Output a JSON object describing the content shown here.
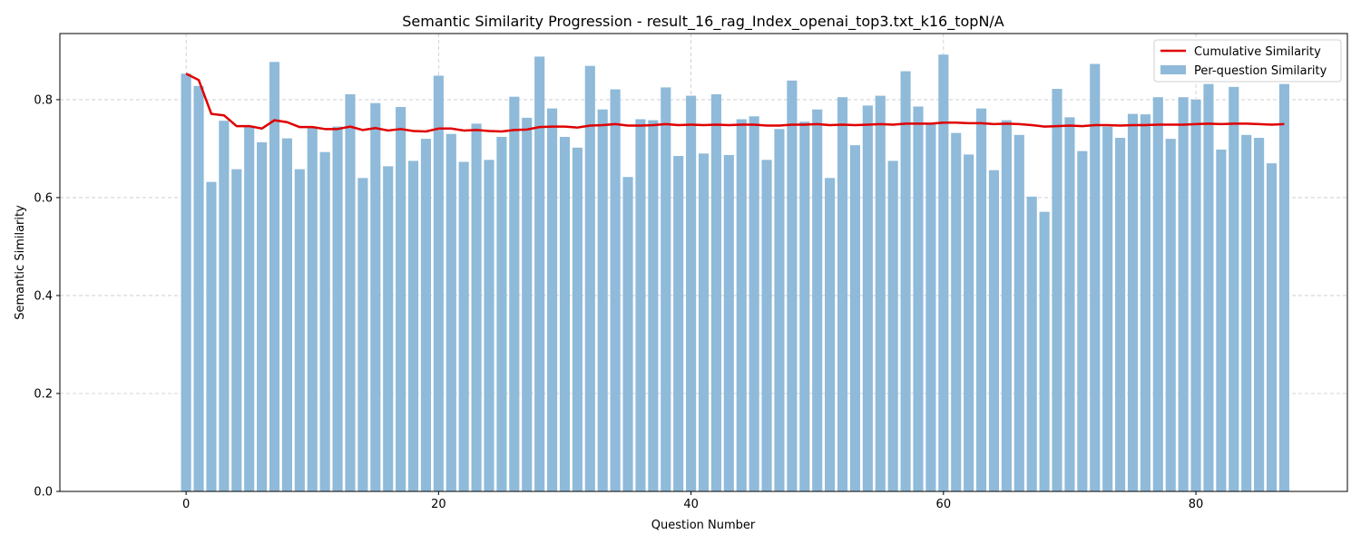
{
  "chart_data": {
    "type": "bar",
    "title": "Semantic Similarity Progression - result_16_rag_Index_openai_top3.txt_k16_topN/A",
    "xlabel": "Question Number",
    "ylabel": "Semantic Similarity",
    "xlim": [
      -10,
      92
    ],
    "ylim": [
      0,
      0.935
    ],
    "xticks": [
      0,
      20,
      40,
      60,
      80
    ],
    "yticks": [
      0.0,
      0.2,
      0.4,
      0.6,
      0.8
    ],
    "grid": true,
    "legend_position": "top-right",
    "colors": {
      "bars": "#8fbad9",
      "line": "#e00000",
      "grid": "#c8c8c8"
    },
    "series": [
      {
        "name": "Per-question Similarity",
        "kind": "bar",
        "values": [
          0.853,
          0.828,
          0.632,
          0.757,
          0.658,
          0.745,
          0.713,
          0.877,
          0.721,
          0.658,
          0.745,
          0.693,
          0.745,
          0.811,
          0.64,
          0.793,
          0.664,
          0.785,
          0.675,
          0.72,
          0.849,
          0.73,
          0.673,
          0.751,
          0.677,
          0.724,
          0.806,
          0.763,
          0.888,
          0.782,
          0.724,
          0.702,
          0.869,
          0.78,
          0.821,
          0.642,
          0.76,
          0.758,
          0.825,
          0.685,
          0.808,
          0.69,
          0.811,
          0.687,
          0.76,
          0.766,
          0.677,
          0.74,
          0.839,
          0.755,
          0.78,
          0.64,
          0.805,
          0.707,
          0.788,
          0.808,
          0.675,
          0.858,
          0.786,
          0.75,
          0.892,
          0.732,
          0.688,
          0.782,
          0.656,
          0.758,
          0.728,
          0.602,
          0.571,
          0.822,
          0.764,
          0.695,
          0.873,
          0.745,
          0.722,
          0.771,
          0.77,
          0.805,
          0.72,
          0.805,
          0.8,
          0.832,
          0.698,
          0.826,
          0.728,
          0.722,
          0.67,
          0.832
        ]
      },
      {
        "name": "Cumulative Similarity",
        "kind": "line",
        "values": [
          0.853,
          0.84,
          0.771,
          0.768,
          0.746,
          0.746,
          0.741,
          0.758,
          0.754,
          0.744,
          0.744,
          0.74,
          0.74,
          0.745,
          0.738,
          0.742,
          0.737,
          0.74,
          0.736,
          0.735,
          0.741,
          0.741,
          0.737,
          0.738,
          0.736,
          0.735,
          0.738,
          0.739,
          0.744,
          0.745,
          0.745,
          0.743,
          0.747,
          0.748,
          0.75,
          0.747,
          0.747,
          0.748,
          0.75,
          0.748,
          0.749,
          0.748,
          0.749,
          0.748,
          0.749,
          0.749,
          0.747,
          0.747,
          0.749,
          0.749,
          0.75,
          0.748,
          0.749,
          0.748,
          0.749,
          0.75,
          0.749,
          0.751,
          0.751,
          0.751,
          0.753,
          0.753,
          0.752,
          0.752,
          0.75,
          0.751,
          0.75,
          0.748,
          0.745,
          0.746,
          0.747,
          0.746,
          0.748,
          0.748,
          0.747,
          0.748,
          0.748,
          0.749,
          0.749,
          0.749,
          0.75,
          0.751,
          0.75,
          0.751,
          0.751,
          0.75,
          0.749,
          0.75
        ]
      }
    ]
  }
}
